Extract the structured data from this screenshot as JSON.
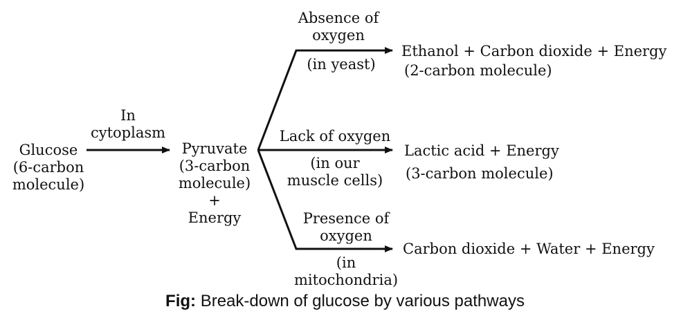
{
  "start": {
    "name": "Glucose",
    "detail_lines": [
      "(6-carbon",
      "molecule)"
    ]
  },
  "first_step": {
    "condition_lines": [
      "In",
      "cytoplasm"
    ]
  },
  "intermediate": {
    "name": "Pyruvate",
    "detail_lines": [
      "(3-carbon",
      "molecule)"
    ],
    "plus": "+",
    "extra": "Energy"
  },
  "pathways": [
    {
      "condition_lines": [
        "Absence of",
        "oxygen"
      ],
      "location_lines": [
        "(in yeast)"
      ],
      "product": "Ethanol + Carbon dioxide + Energy",
      "product_detail": "(2-carbon molecule)"
    },
    {
      "condition_lines": [
        "Lack of oxygen"
      ],
      "location_lines": [
        "(in our",
        "muscle cells)"
      ],
      "product": "Lactic acid + Energy",
      "product_detail": "(3-carbon molecule)"
    },
    {
      "condition_lines": [
        "Presence of",
        "oxygen"
      ],
      "location_lines": [
        "(in",
        "mitochondria)"
      ],
      "product": "Carbon dioxide + Water + Energy",
      "product_detail": ""
    }
  ],
  "caption": {
    "prefix": "Fig:",
    "text": "Break-down of glucose by various pathways"
  },
  "colors": {
    "text": "#111111",
    "arrow": "#111111"
  }
}
